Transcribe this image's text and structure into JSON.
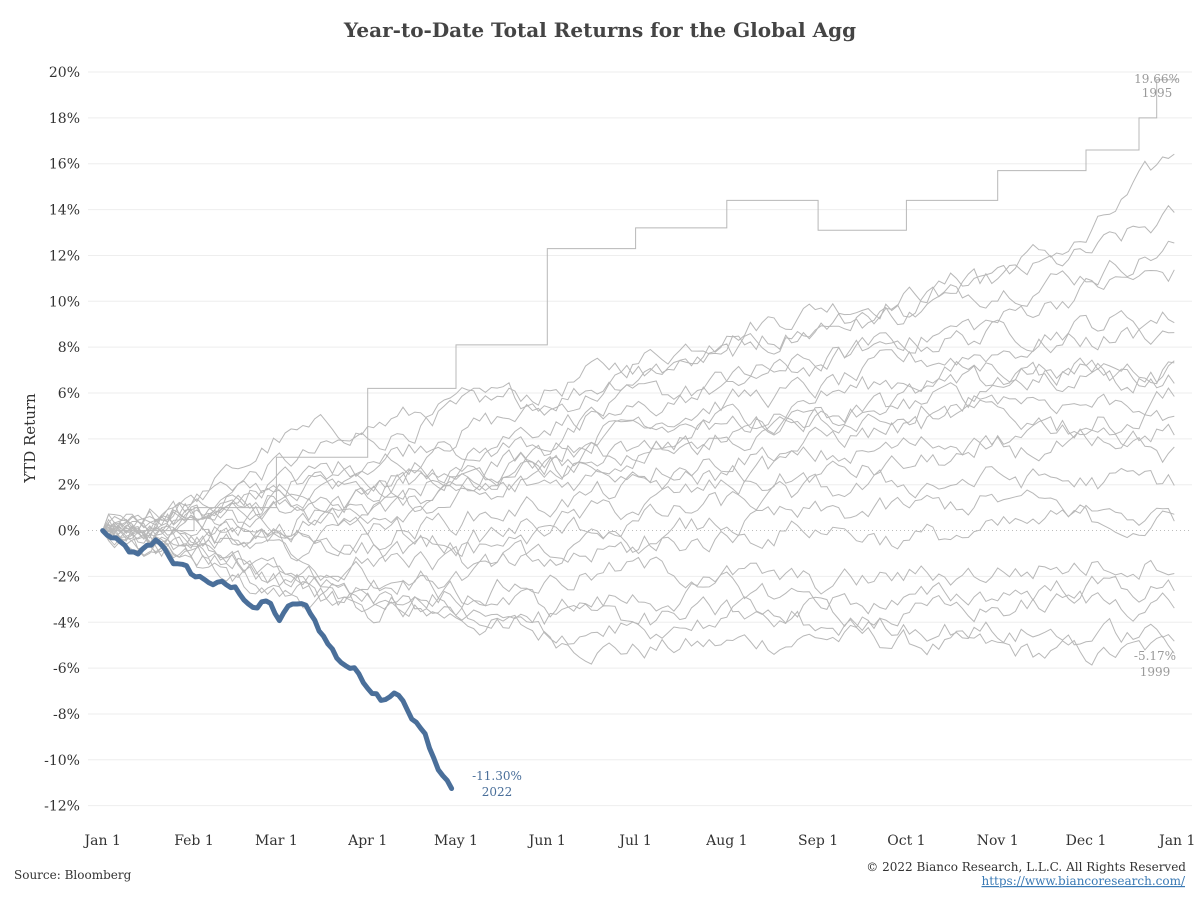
{
  "chart_data": {
    "type": "line",
    "title": "Year-to-Date Total Returns for the Global Agg",
    "xlabel": "",
    "ylabel": "YTD Return",
    "x_ticks": [
      "Jan 1",
      "Feb 1",
      "Mar 1",
      "Apr 1",
      "May 1",
      "Jun 1",
      "Jul 1",
      "Aug 1",
      "Sep 1",
      "Oct 1",
      "Nov 1",
      "Dec 1",
      "Jan 1"
    ],
    "y_ticks": [
      "20%",
      "18%",
      "16%",
      "14%",
      "12%",
      "10%",
      "8%",
      "6%",
      "4%",
      "2%",
      "0%",
      "-2%",
      "-4%",
      "-6%",
      "-8%",
      "-10%",
      "-12%"
    ],
    "ylim": [
      -12.8,
      20.7
    ],
    "x_unit": "day of year",
    "xlim": [
      -5,
      370
    ],
    "grid": "horizontal",
    "colors": {
      "highlight": "#4a6f9a",
      "other_years": "#b8b8b8"
    },
    "series": [
      {
        "name": "2022",
        "highlight": true,
        "x": [
          0,
          7,
          12,
          19,
          24,
          31,
          36,
          45,
          52,
          56,
          60,
          65,
          70,
          76,
          80,
          85,
          90,
          95,
          100,
          105,
          110,
          114,
          119
        ],
        "y": [
          0,
          -0.8,
          -1.2,
          -0.5,
          -1.3,
          -2.0,
          -2.2,
          -2.6,
          -3.3,
          -3.1,
          -3.9,
          -3.2,
          -3.5,
          -4.8,
          -5.6,
          -6.0,
          -6.7,
          -7.2,
          -6.8,
          -8.2,
          -9.1,
          -10.4,
          -11.3
        ]
      },
      {
        "name": "1995",
        "x": [
          0,
          31,
          59,
          90,
          120,
          151,
          181,
          212,
          243,
          273,
          304,
          334,
          352,
          358,
          365
        ],
        "y": [
          0,
          1.0,
          3.2,
          6.2,
          8.1,
          12.3,
          13.2,
          14.4,
          13.1,
          14.4,
          15.7,
          16.6,
          18.0,
          19.66,
          19.66
        ]
      },
      {
        "name": "1999",
        "x": [
          0,
          31,
          59,
          90,
          120,
          151,
          181,
          212,
          243,
          273,
          304,
          334,
          365
        ],
        "y": [
          0,
          -1.6,
          -2.8,
          -3.2,
          -3.7,
          -4.6,
          -5.2,
          -5.0,
          -4.6,
          -4.9,
          -5.3,
          -5.5,
          -5.17
        ]
      },
      {
        "name": "",
        "x": [
          0,
          31,
          59,
          90,
          120,
          151,
          181,
          212,
          243,
          273,
          304,
          334,
          365
        ],
        "y": [
          0,
          1.5,
          2.8,
          3.9,
          5.2,
          6.1,
          7.4,
          8.7,
          9.8,
          10.2,
          11.4,
          12.6,
          16.5
        ]
      },
      {
        "name": "",
        "x": [
          0,
          31,
          59,
          90,
          120,
          151,
          181,
          212,
          243,
          273,
          304,
          334,
          365
        ],
        "y": [
          0,
          0.8,
          1.9,
          3.1,
          4.4,
          5.2,
          6.8,
          7.5,
          8.9,
          9.6,
          10.8,
          11.9,
          13.7
        ]
      },
      {
        "name": "",
        "x": [
          0,
          31,
          59,
          90,
          120,
          151,
          181,
          212,
          243,
          273,
          304,
          334,
          365
        ],
        "y": [
          0,
          1.2,
          3.9,
          4.6,
          5.3,
          5.8,
          6.9,
          8.1,
          9.0,
          9.5,
          10.7,
          11.2,
          12.5
        ]
      },
      {
        "name": "",
        "x": [
          0,
          31,
          59,
          90,
          120,
          151,
          181,
          212,
          243,
          273,
          304,
          334,
          365
        ],
        "y": [
          0,
          0.5,
          1.4,
          2.7,
          3.6,
          4.8,
          5.5,
          6.3,
          7.2,
          8.4,
          9.1,
          10.6,
          11.2
        ]
      },
      {
        "name": "",
        "x": [
          0,
          31,
          59,
          90,
          120,
          151,
          181,
          212,
          243,
          273,
          304,
          334,
          365
        ],
        "y": [
          0,
          0.9,
          2.2,
          1.8,
          3.2,
          4.0,
          5.1,
          6.6,
          7.4,
          8.2,
          8.6,
          9.0,
          9.4
        ]
      },
      {
        "name": "",
        "x": [
          0,
          31,
          59,
          90,
          120,
          151,
          181,
          212,
          243,
          273,
          304,
          334,
          365
        ],
        "y": [
          0,
          -0.4,
          0.6,
          1.5,
          2.8,
          3.4,
          4.9,
          5.7,
          6.1,
          7.3,
          7.9,
          8.3,
          8.8
        ]
      },
      {
        "name": "",
        "x": [
          0,
          31,
          59,
          90,
          120,
          151,
          181,
          212,
          243,
          273,
          304,
          334,
          365
        ],
        "y": [
          0,
          0.3,
          1.1,
          1.9,
          2.4,
          3.3,
          4.1,
          4.8,
          5.9,
          6.6,
          7.2,
          7.0,
          7.4
        ]
      },
      {
        "name": "",
        "x": [
          0,
          31,
          59,
          90,
          120,
          151,
          181,
          212,
          243,
          273,
          304,
          334,
          365
        ],
        "y": [
          0,
          1.0,
          0.4,
          1.3,
          2.1,
          2.9,
          3.5,
          4.6,
          5.2,
          5.8,
          6.4,
          6.9,
          6.7
        ]
      },
      {
        "name": "",
        "x": [
          0,
          31,
          59,
          90,
          120,
          151,
          181,
          212,
          243,
          273,
          304,
          334,
          365
        ],
        "y": [
          0,
          -0.8,
          0.2,
          0.9,
          1.6,
          2.5,
          3.3,
          3.9,
          4.7,
          5.5,
          6.0,
          5.6,
          5.8
        ]
      },
      {
        "name": "",
        "x": [
          0,
          31,
          59,
          90,
          120,
          151,
          181,
          212,
          243,
          273,
          304,
          334,
          365
        ],
        "y": [
          0,
          0.6,
          -0.3,
          0.8,
          1.4,
          2.0,
          2.8,
          3.2,
          3.9,
          4.5,
          5.0,
          4.6,
          5.3
        ]
      },
      {
        "name": "",
        "x": [
          0,
          31,
          59,
          90,
          120,
          151,
          181,
          212,
          243,
          273,
          304,
          334,
          365
        ],
        "y": [
          0,
          -0.2,
          -1.0,
          -0.4,
          0.5,
          1.2,
          1.8,
          2.5,
          3.1,
          3.6,
          4.1,
          4.4,
          4.3
        ]
      },
      {
        "name": "",
        "x": [
          0,
          31,
          59,
          90,
          120,
          151,
          181,
          212,
          243,
          273,
          304,
          334,
          365
        ],
        "y": [
          0,
          0.4,
          1.2,
          0.2,
          -0.6,
          0.3,
          1.0,
          1.9,
          2.4,
          2.8,
          3.4,
          3.6,
          3.2
        ]
      },
      {
        "name": "",
        "x": [
          0,
          31,
          59,
          90,
          120,
          151,
          181,
          212,
          243,
          273,
          304,
          334,
          365
        ],
        "y": [
          0,
          -1.1,
          -1.8,
          -1.2,
          -0.9,
          -0.2,
          0.4,
          1.1,
          1.6,
          2.0,
          2.3,
          2.1,
          2.1
        ]
      },
      {
        "name": "",
        "x": [
          0,
          31,
          59,
          90,
          120,
          151,
          181,
          212,
          243,
          273,
          304,
          334,
          365
        ],
        "y": [
          0,
          0.7,
          0.1,
          -0.8,
          -1.6,
          -1.2,
          -0.5,
          0.3,
          0.6,
          0.9,
          1.3,
          0.8,
          0.6
        ]
      },
      {
        "name": "",
        "x": [
          0,
          31,
          59,
          90,
          120,
          151,
          181,
          212,
          243,
          273,
          304,
          334,
          365
        ],
        "y": [
          0,
          -0.5,
          -1.5,
          -2.4,
          -2.0,
          -1.4,
          -0.8,
          -0.3,
          0.2,
          -0.4,
          -0.1,
          0.5,
          0.3
        ]
      },
      {
        "name": "",
        "x": [
          0,
          31,
          59,
          90,
          120,
          151,
          181,
          212,
          243,
          273,
          304,
          334,
          365
        ],
        "y": [
          0,
          -0.9,
          -2.1,
          -3.0,
          -2.6,
          -2.2,
          -1.7,
          -1.9,
          -2.4,
          -2.0,
          -1.8,
          -1.5,
          -1.2
        ]
      },
      {
        "name": "",
        "x": [
          0,
          31,
          59,
          90,
          120,
          151,
          181,
          212,
          243,
          273,
          304,
          334,
          365
        ],
        "y": [
          0,
          -0.3,
          -1.2,
          -2.0,
          -2.8,
          -3.3,
          -3.0,
          -2.6,
          -2.9,
          -3.2,
          -2.7,
          -2.4,
          -2.6
        ]
      },
      {
        "name": "",
        "x": [
          0,
          31,
          59,
          90,
          120,
          151,
          181,
          212,
          243,
          273,
          304,
          334,
          365
        ],
        "y": [
          0,
          -1.3,
          -2.6,
          -3.6,
          -3.2,
          -3.9,
          -4.3,
          -3.8,
          -3.5,
          -3.7,
          -3.4,
          -3.1,
          -3.1
        ]
      },
      {
        "name": "",
        "x": [
          0,
          31,
          59,
          90,
          120,
          151,
          181,
          212,
          243,
          273,
          304,
          334,
          365
        ],
        "y": [
          0,
          -0.7,
          -1.9,
          -2.9,
          -3.8,
          -4.5,
          -4.1,
          -3.6,
          -4.2,
          -4.0,
          -4.4,
          -4.6,
          -4.5
        ]
      },
      {
        "name": "",
        "x": [
          0,
          31,
          59,
          90,
          120,
          151,
          181,
          212,
          243,
          273,
          304,
          334,
          365
        ],
        "y": [
          0,
          0.2,
          1.6,
          0.8,
          1.8,
          2.4,
          3.6,
          4.2,
          4.9,
          5.4,
          6.2,
          6.5,
          6.9
        ]
      }
    ],
    "annotations": [
      {
        "series": "1995",
        "value": "19.66%",
        "label": "1995"
      },
      {
        "series": "1999",
        "value": "-5.17%",
        "label": "1999"
      },
      {
        "series": "2022",
        "value": "-11.30%",
        "label": "2022"
      }
    ]
  },
  "footer": {
    "source": "Source: Bloomberg",
    "copyright": "© 2022 Bianco Research, L.L.C. All Rights Reserved",
    "url": "https://www.biancoresearch.com/"
  }
}
